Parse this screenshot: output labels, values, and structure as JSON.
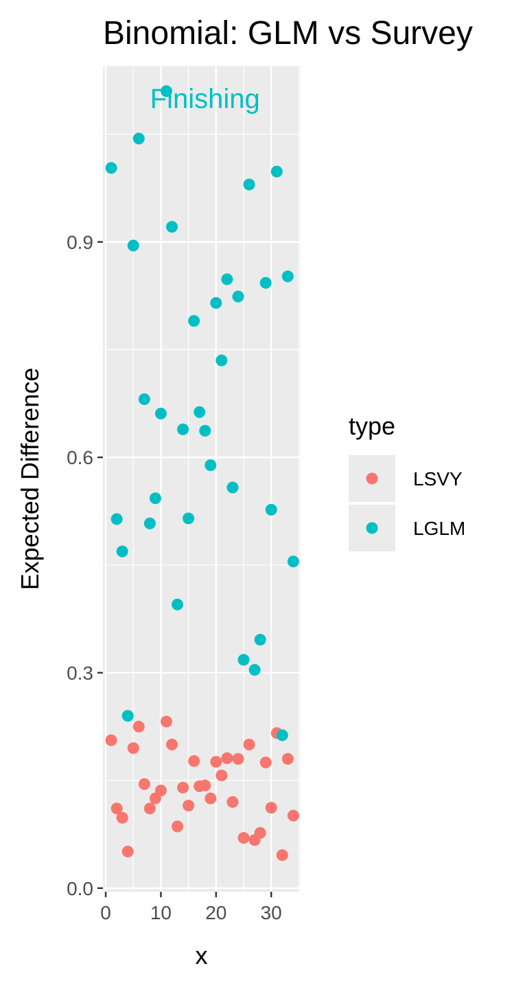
{
  "chart_data": {
    "type": "scatter",
    "title": "Binomial: GLM vs Survey",
    "xlabel": "x",
    "ylabel": "Expected Difference",
    "xlim": [
      -0.5,
      35.2
    ],
    "ylim": [
      -0.005,
      1.145
    ],
    "x_ticks": [
      0,
      10,
      20,
      30
    ],
    "y_ticks": [
      0.0,
      0.3,
      0.6,
      0.9
    ],
    "y_tick_labels": [
      "0.0",
      "0.3",
      "0.6",
      "0.9"
    ],
    "grid": true,
    "legend": {
      "title": "type",
      "position": "right",
      "entries": [
        {
          "label": "LSVY",
          "color": "#f8766d"
        },
        {
          "label": "LGLM",
          "color": "#00bfc4"
        }
      ]
    },
    "annotation": {
      "text": "Finishing",
      "x": 18,
      "y": 1.1
    },
    "series": [
      {
        "name": "LSVY",
        "color": "#f8766d",
        "x": [
          1,
          2,
          3,
          4,
          5,
          6,
          7,
          8,
          9,
          10,
          11,
          12,
          13,
          14,
          15,
          16,
          17,
          18,
          19,
          20,
          21,
          22,
          23,
          24,
          25,
          26,
          27,
          28,
          29,
          30,
          31,
          32,
          33,
          34
        ],
        "y": [
          0.206,
          0.111,
          0.098,
          0.051,
          0.195,
          0.225,
          0.145,
          0.111,
          0.125,
          0.136,
          0.232,
          0.2,
          0.086,
          0.14,
          0.115,
          0.177,
          0.142,
          0.143,
          0.125,
          0.176,
          0.157,
          0.181,
          0.12,
          0.18,
          0.07,
          0.2,
          0.067,
          0.077,
          0.175,
          0.112,
          0.216,
          0.046,
          0.18,
          0.101
        ]
      },
      {
        "name": "LGLM",
        "color": "#00bfc4",
        "x": [
          1,
          2,
          3,
          4,
          5,
          6,
          7,
          8,
          9,
          10,
          11,
          12,
          13,
          14,
          15,
          16,
          17,
          18,
          19,
          20,
          21,
          22,
          23,
          24,
          25,
          26,
          27,
          28,
          29,
          30,
          31,
          32,
          33,
          34
        ],
        "y": [
          1.003,
          0.514,
          0.469,
          0.24,
          0.895,
          1.044,
          0.681,
          0.508,
          0.543,
          0.661,
          1.11,
          0.921,
          0.395,
          0.639,
          0.515,
          0.79,
          0.663,
          0.637,
          0.589,
          0.815,
          0.735,
          0.848,
          0.558,
          0.824,
          0.318,
          0.98,
          0.304,
          0.346,
          0.843,
          0.527,
          0.998,
          0.213,
          0.852,
          0.455
        ]
      }
    ]
  }
}
